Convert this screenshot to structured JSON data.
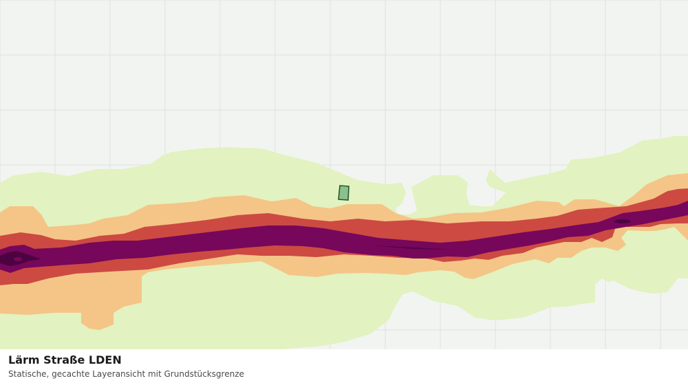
{
  "caption": {
    "title": "Lärm Straße LDEN",
    "subtitle": "Statische, gecachte Layeransicht mit Grundstücksgrenze"
  },
  "map": {
    "background_color": "#f2f4f1",
    "grid_color": "#e0e2df",
    "noise_bands": [
      {
        "level": 1,
        "color": "#e2f2c0"
      },
      {
        "level": 2,
        "color": "#f4c587"
      },
      {
        "level": 3,
        "color": "#cc4a42"
      },
      {
        "level": 4,
        "color": "#76075a"
      },
      {
        "level": 5,
        "color": "#4d0342"
      }
    ],
    "parcel": {
      "fill": "#8cc08c",
      "stroke": "#255a2a"
    }
  }
}
